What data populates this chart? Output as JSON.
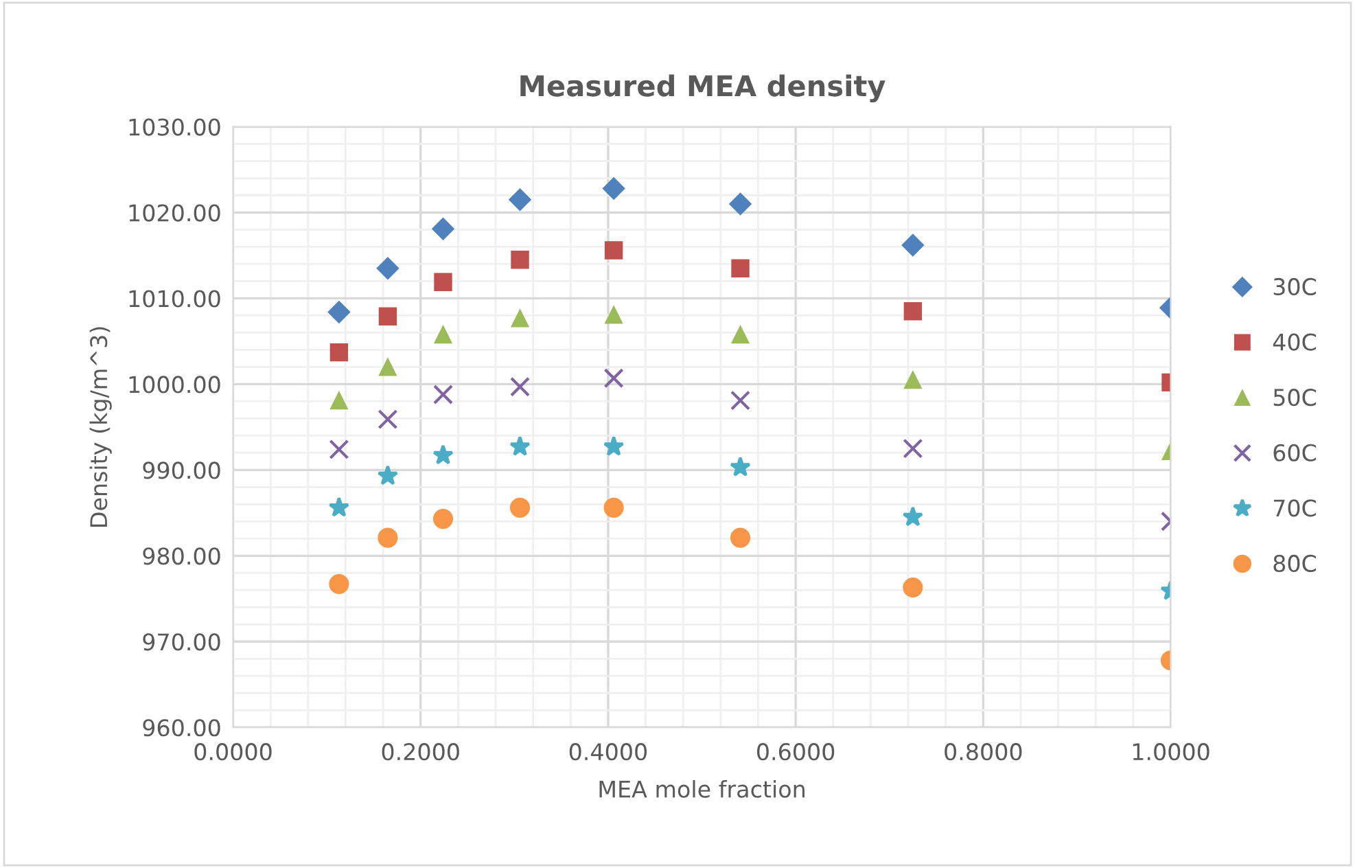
{
  "chart_data": {
    "type": "scatter",
    "title": "Measured MEA density",
    "xlabel": "MEA mole fraction",
    "ylabel": "Density (kg/m^3)",
    "x": [
      0.113,
      0.165,
      0.224,
      0.306,
      0.406,
      0.541,
      0.725,
      1.0
    ],
    "series": [
      {
        "name": "30C",
        "color": "#4f81bd",
        "marker": "diamond",
        "values": [
          1008.4,
          1013.5,
          1018.1,
          1021.5,
          1022.8,
          1021.0,
          1016.2,
          1008.9
        ]
      },
      {
        "name": "40C",
        "color": "#c0504d",
        "marker": "square",
        "values": [
          1003.7,
          1007.9,
          1011.9,
          1014.5,
          1015.6,
          1013.5,
          1008.5,
          1000.2
        ]
      },
      {
        "name": "50C",
        "color": "#9bbb59",
        "marker": "triangle",
        "values": [
          998.1,
          1002.0,
          1005.8,
          1007.7,
          1008.1,
          1005.8,
          1000.5,
          992.2
        ]
      },
      {
        "name": "60C",
        "color": "#8064a2",
        "marker": "cross",
        "values": [
          992.4,
          995.9,
          998.8,
          999.7,
          1000.7,
          998.1,
          992.5,
          984.0
        ]
      },
      {
        "name": "70C",
        "color": "#4bacc6",
        "marker": "star",
        "values": [
          985.6,
          989.3,
          991.7,
          992.7,
          992.7,
          990.3,
          984.5,
          975.9
        ]
      },
      {
        "name": "80C",
        "color": "#f79646",
        "marker": "circle",
        "values": [
          976.7,
          982.1,
          984.3,
          985.6,
          985.6,
          982.1,
          976.3,
          967.8
        ]
      }
    ],
    "xlim": [
      0,
      1.0
    ],
    "xticks": [
      {
        "value": 0,
        "label": "0.0000"
      },
      {
        "value": 0.2,
        "label": "0.2000"
      },
      {
        "value": 0.4,
        "label": "0.4000"
      },
      {
        "value": 0.6,
        "label": "0.6000"
      },
      {
        "value": 0.8,
        "label": "0.8000"
      },
      {
        "value": 1.0,
        "label": "1.0000"
      }
    ],
    "ylim": [
      960,
      1030
    ],
    "yticks": [
      {
        "value": 960,
        "label": "960.00"
      },
      {
        "value": 970,
        "label": "970.00"
      },
      {
        "value": 980,
        "label": "980.00"
      },
      {
        "value": 990,
        "label": "990.00"
      },
      {
        "value": 1000,
        "label": "1000.00"
      },
      {
        "value": 1010,
        "label": "1010.00"
      },
      {
        "value": 1020,
        "label": "1020.00"
      },
      {
        "value": 1030,
        "label": "1030.00"
      }
    ],
    "grid": true,
    "legend": "right"
  }
}
